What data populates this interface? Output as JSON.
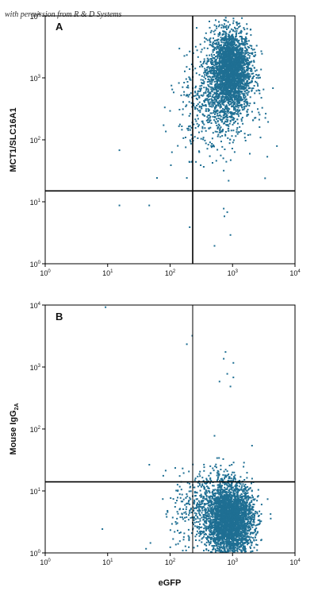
{
  "watermark": "with permission from R & D Systems",
  "colors": {
    "dots": "#1f6f93",
    "axes": "#000000",
    "background": "#ffffff"
  },
  "chart_data": [
    {
      "type": "scatter",
      "panel_label": "A",
      "xlabel": "",
      "ylabel": "MCT1/SLC16A1",
      "xscale": "log",
      "yscale": "log",
      "xlim": [
        1,
        10000
      ],
      "ylim": [
        1,
        10000
      ],
      "x_ticks": [
        1,
        10,
        100,
        1000,
        10000
      ],
      "y_ticks": [
        1,
        10,
        100,
        1000,
        10000
      ],
      "quadrant_gates": {
        "x": 230,
        "y": 15
      },
      "populations": [
        {
          "x_center": 900,
          "y_center": 1400,
          "x_spread_decades": 0.16,
          "y_spread_decades": 0.32,
          "count": 2600
        },
        {
          "x_center": 550,
          "y_center": 400,
          "x_spread_decades": 0.3,
          "y_spread_decades": 0.4,
          "count": 700
        }
      ],
      "outliers": [
        [
          15,
          70
        ],
        [
          45,
          9
        ],
        [
          15,
          9
        ],
        [
          200,
          4
        ],
        [
          500,
          2
        ],
        [
          700,
          8
        ],
        [
          720,
          6
        ],
        [
          900,
          3
        ],
        [
          800,
          7
        ],
        [
          3500,
          55
        ],
        [
          180,
          25
        ],
        [
          200,
          45
        ],
        [
          60,
          25
        ],
        [
          100,
          40
        ],
        [
          400,
          300
        ],
        [
          300,
          40
        ]
      ]
    },
    {
      "type": "scatter",
      "panel_label": "B",
      "xlabel": "eGFP",
      "ylabel": "Mouse IgG",
      "ylabel_subscript": "2A",
      "xscale": "log",
      "yscale": "log",
      "xlim": [
        1,
        10000
      ],
      "ylim": [
        1,
        10000
      ],
      "x_ticks": [
        1,
        10,
        100,
        1000,
        10000
      ],
      "y_ticks": [
        1,
        10,
        100,
        1000,
        10000
      ],
      "quadrant_gates": {
        "x": 230,
        "y": 14
      },
      "populations": [
        {
          "x_center": 900,
          "y_center": 3.5,
          "x_spread_decades": 0.18,
          "y_spread_decades": 0.28,
          "count": 3200
        },
        {
          "x_center": 400,
          "y_center": 5,
          "x_spread_decades": 0.28,
          "y_spread_decades": 0.35,
          "count": 600
        }
      ],
      "outliers": [
        [
          9,
          9500
        ],
        [
          180,
          2400
        ],
        [
          220,
          3300
        ],
        [
          700,
          1400
        ],
        [
          800,
          800
        ],
        [
          900,
          500
        ],
        [
          1000,
          700
        ],
        [
          600,
          600
        ],
        [
          1000,
          1200
        ],
        [
          750,
          1800
        ],
        [
          500,
          80
        ],
        [
          550,
          35
        ],
        [
          8,
          2.5
        ],
        [
          40,
          1.2
        ],
        [
          160,
          20
        ],
        [
          200,
          8
        ]
      ]
    }
  ]
}
